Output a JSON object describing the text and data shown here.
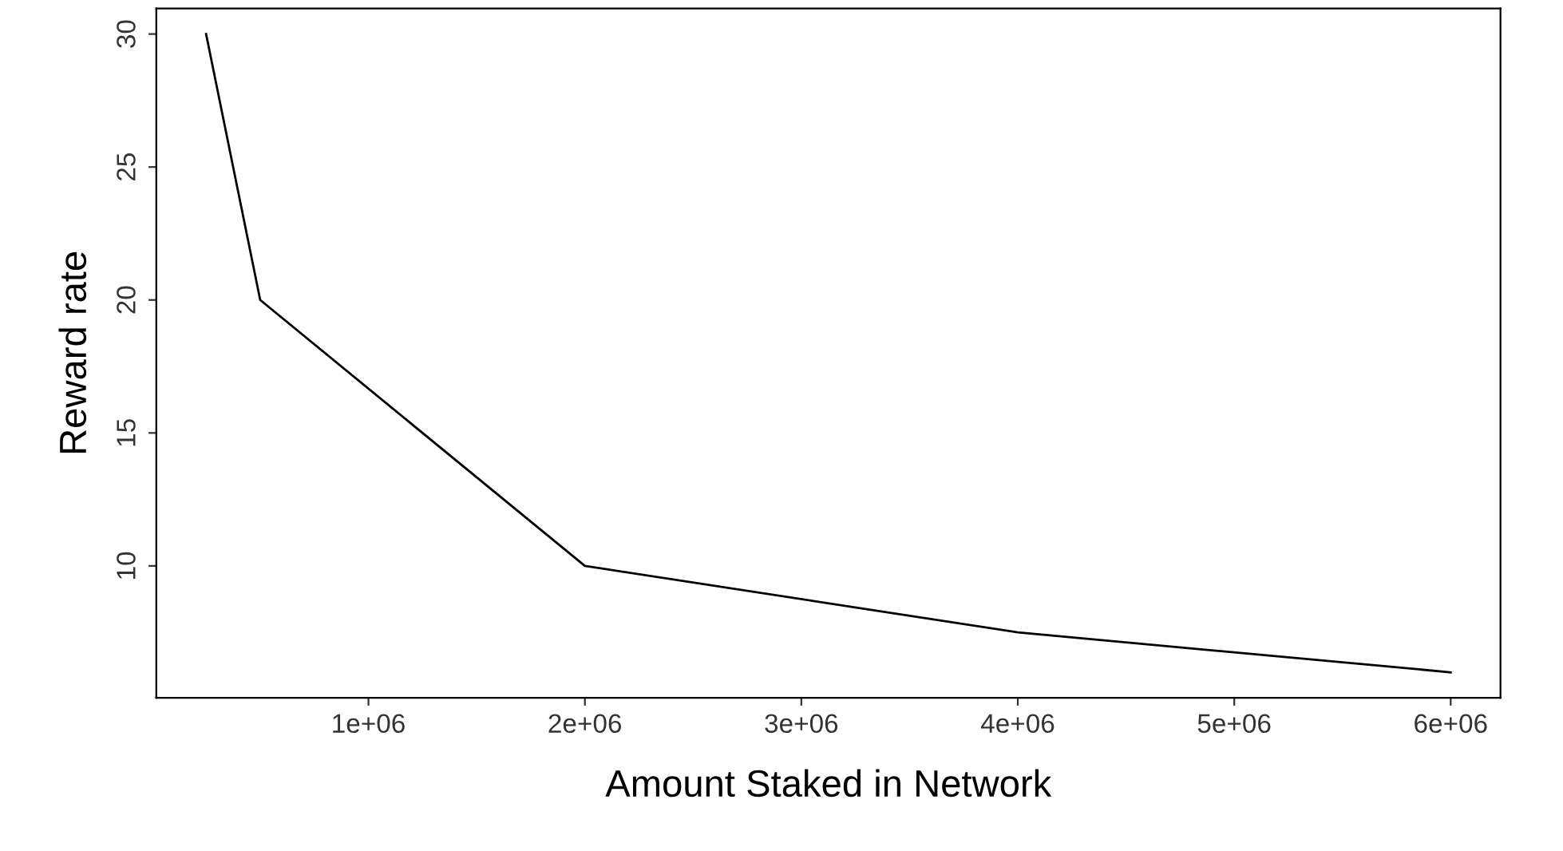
{
  "chart_data": {
    "type": "line",
    "xlabel": "Amount Staked in Network",
    "ylabel": "Reward rate",
    "x": [
      250000,
      500000,
      2000000,
      4000000,
      6000000
    ],
    "series": [
      {
        "color": "#000000",
        "values": [
          30,
          20,
          10,
          7.5,
          6
        ]
      }
    ],
    "xlim": [
      20000,
      6230000
    ],
    "ylim": [
      5.04,
      30.96
    ],
    "xticks": [
      {
        "value": 1000000,
        "label": "1e+06"
      },
      {
        "value": 2000000,
        "label": "2e+06"
      },
      {
        "value": 3000000,
        "label": "3e+06"
      },
      {
        "value": 4000000,
        "label": "4e+06"
      },
      {
        "value": 5000000,
        "label": "5e+06"
      },
      {
        "value": 6000000,
        "label": "6e+06"
      }
    ],
    "yticks": [
      10,
      15,
      20,
      25,
      30
    ],
    "grid": false,
    "legend": false,
    "marker": "none",
    "line_style": "solid"
  }
}
